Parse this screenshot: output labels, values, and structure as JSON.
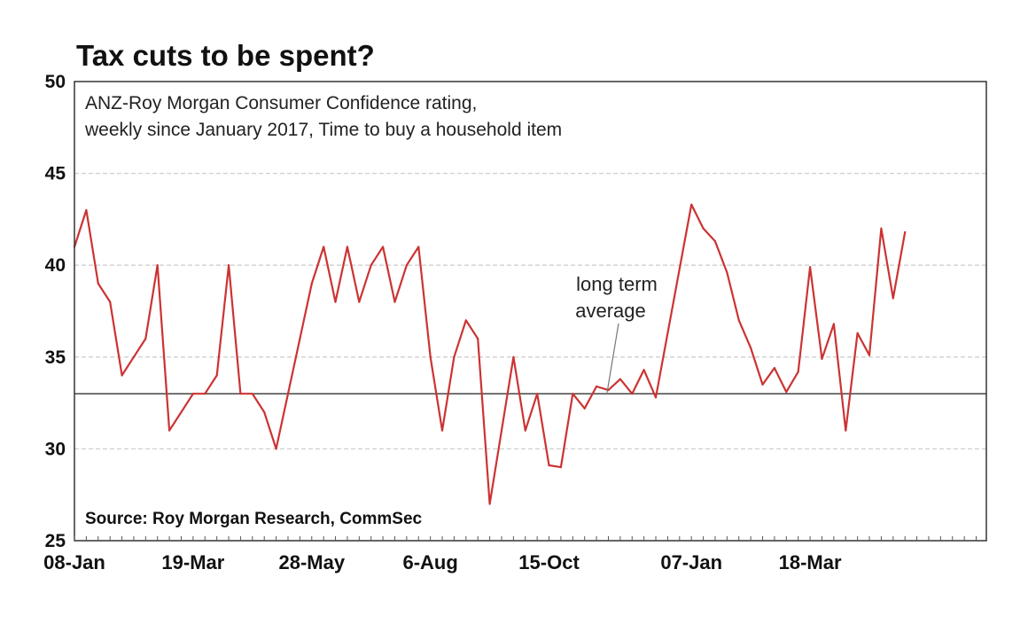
{
  "chart_data": {
    "type": "line",
    "title": "Tax cuts to be spent?",
    "subtitle_lines": [
      "ANZ-Roy Morgan Consumer Confidence rating,",
      "weekly since January 2017, Time to buy a household item"
    ],
    "source": "Source: Roy Morgan Research, CommSec",
    "ylim": [
      25,
      50
    ],
    "y_ticks": [
      {
        "value": 25,
        "label": "25"
      },
      {
        "value": 30,
        "label": "30"
      },
      {
        "value": 35,
        "label": "35"
      },
      {
        "value": 40,
        "label": "40"
      },
      {
        "value": 45,
        "label": "45"
      },
      {
        "value": 50,
        "label": "50"
      }
    ],
    "x_ticks": [
      {
        "label": "08-Jan",
        "date": "2018-01-08"
      },
      {
        "label": "19-Mar",
        "date": "2018-03-19"
      },
      {
        "label": "28-May",
        "date": "2018-05-28"
      },
      {
        "label": "6-Aug",
        "date": "2018-08-06"
      },
      {
        "label": "15-Oct",
        "date": "2018-10-15"
      },
      {
        "label": "07-Jan",
        "date": "2019-01-07"
      },
      {
        "label": "18-Mar",
        "date": "2019-03-18"
      }
    ],
    "xlim": [
      "2018-01-08",
      "2019-06-30"
    ],
    "grid": "horizontal",
    "reference_line": {
      "value": 33,
      "label_lines": [
        "long term",
        "average"
      ]
    },
    "series": [
      {
        "color": "#cc3333",
        "points": [
          [
            "2018-01-08",
            41.0
          ],
          [
            "2018-01-15",
            43.0
          ],
          [
            "2018-01-22",
            39.0
          ],
          [
            "2018-01-29",
            38.0
          ],
          [
            "2018-02-05",
            34.0
          ],
          [
            "2018-02-12",
            35.0
          ],
          [
            "2018-02-19",
            36.0
          ],
          [
            "2018-02-26",
            40.0
          ],
          [
            "2018-03-05",
            31.0
          ],
          [
            "2018-03-12",
            32.0
          ],
          [
            "2018-03-19",
            33.0
          ],
          [
            "2018-03-26",
            33.0
          ],
          [
            "2018-04-02",
            34.0
          ],
          [
            "2018-04-09",
            40.0
          ],
          [
            "2018-04-16",
            33.0
          ],
          [
            "2018-04-23",
            33.0
          ],
          [
            "2018-04-30",
            32.0
          ],
          [
            "2018-05-07",
            30.0
          ],
          [
            "2018-05-14",
            33.0
          ],
          [
            "2018-05-21",
            36.0
          ],
          [
            "2018-05-28",
            39.0
          ],
          [
            "2018-06-04",
            41.0
          ],
          [
            "2018-06-11",
            38.0
          ],
          [
            "2018-06-18",
            41.0
          ],
          [
            "2018-06-25",
            38.0
          ],
          [
            "2018-07-02",
            40.0
          ],
          [
            "2018-07-09",
            41.0
          ],
          [
            "2018-07-16",
            38.0
          ],
          [
            "2018-07-23",
            40.0
          ],
          [
            "2018-07-30",
            41.0
          ],
          [
            "2018-08-06",
            35.0
          ],
          [
            "2018-08-13",
            31.0
          ],
          [
            "2018-08-20",
            35.0
          ],
          [
            "2018-08-27",
            37.0
          ],
          [
            "2018-09-03",
            36.0
          ],
          [
            "2018-09-10",
            27.0
          ],
          [
            "2018-09-17",
            31.0
          ],
          [
            "2018-09-24",
            35.0
          ],
          [
            "2018-10-01",
            31.0
          ],
          [
            "2018-10-08",
            33.0
          ],
          [
            "2018-10-15",
            29.1
          ],
          [
            "2018-10-22",
            29.0
          ],
          [
            "2018-10-29",
            33.0
          ],
          [
            "2018-11-05",
            32.2
          ],
          [
            "2018-11-12",
            33.4
          ],
          [
            "2018-11-19",
            33.2
          ],
          [
            "2018-11-26",
            33.8
          ],
          [
            "2018-12-03",
            33.0
          ],
          [
            "2018-12-10",
            34.3
          ],
          [
            "2018-12-17",
            32.8
          ],
          [
            "2019-01-07",
            43.3
          ],
          [
            "2019-01-14",
            42.0
          ],
          [
            "2019-01-21",
            41.3
          ],
          [
            "2019-01-28",
            39.6
          ],
          [
            "2019-02-04",
            37.0
          ],
          [
            "2019-02-11",
            35.5
          ],
          [
            "2019-02-18",
            33.5
          ],
          [
            "2019-02-25",
            34.4
          ],
          [
            "2019-03-04",
            33.1
          ],
          [
            "2019-03-11",
            34.2
          ],
          [
            "2019-03-18",
            39.9
          ],
          [
            "2019-03-25",
            34.9
          ],
          [
            "2019-04-01",
            36.8
          ],
          [
            "2019-04-08",
            31.0
          ],
          [
            "2019-04-15",
            36.3
          ],
          [
            "2019-04-22",
            35.1
          ],
          [
            "2019-04-29",
            42.0
          ],
          [
            "2019-05-06",
            38.2
          ],
          [
            "2019-05-13",
            41.8
          ]
        ]
      }
    ]
  }
}
